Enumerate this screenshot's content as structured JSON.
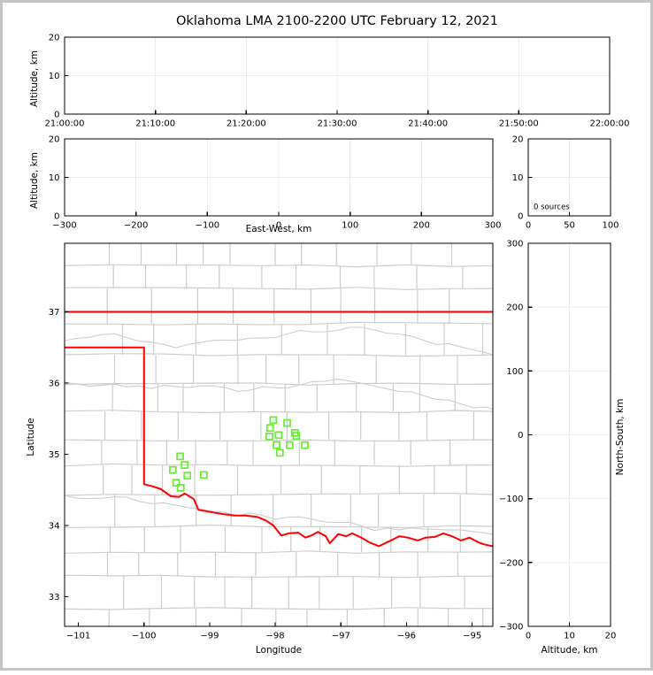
{
  "title": "Oklahoma LMA 2100-2200 UTC February 12, 2021",
  "colors": {
    "figure_border": "#c4c4c4",
    "axis": "#000000",
    "grid": "#ececec",
    "county": "#cccccc",
    "state_border": "#ff0000",
    "stations": "#66ee33"
  },
  "chart_data": [
    {
      "id": "time_altitude_panel",
      "type": "scatter",
      "ylabel": "Altitude, km",
      "xlabel": "",
      "xlim_values": [
        0,
        6
      ],
      "ylim": [
        0,
        20
      ],
      "x_tick_values": [
        0,
        1,
        2,
        3,
        4,
        5,
        6
      ],
      "x_tick_labels": [
        "21:00:00",
        "21:10:00",
        "21:20:00",
        "21:30:00",
        "21:40:00",
        "21:50:00",
        "22:00:00"
      ],
      "y_tick_values": [
        0,
        10,
        20
      ],
      "y_tick_labels": [
        "0",
        "10",
        "20"
      ],
      "grid_x": [
        1,
        2,
        3,
        4,
        5
      ],
      "grid_y": [
        10
      ],
      "points": []
    },
    {
      "id": "eastwest_altitude_panel",
      "type": "scatter",
      "ylabel": "Altitude, km",
      "xlabel": "East-West, km",
      "xlim_values": [
        -300,
        300
      ],
      "ylim": [
        0,
        20
      ],
      "x_tick_values": [
        -300,
        -200,
        -100,
        0,
        100,
        200,
        300
      ],
      "x_tick_labels": [
        "−300",
        "−200",
        "−100",
        "0",
        "100",
        "200",
        "300"
      ],
      "y_tick_values": [
        0,
        10,
        20
      ],
      "y_tick_labels": [
        "0",
        "10",
        "20"
      ],
      "grid_x": [
        -200,
        -100,
        0,
        100,
        200
      ],
      "grid_y": [
        10
      ],
      "points": []
    },
    {
      "id": "altitude_histogram_panel",
      "type": "line",
      "annotation": "0 sources",
      "xlabel": "",
      "ylabel": "",
      "xlim_values": [
        0,
        100
      ],
      "ylim": [
        0,
        20
      ],
      "x_tick_values": [
        0,
        50,
        100
      ],
      "x_tick_labels": [
        "0",
        "50",
        "100"
      ],
      "y_tick_values": [
        0,
        10,
        20
      ],
      "y_tick_labels": [
        "0",
        "10",
        "20"
      ],
      "grid_x": [
        50
      ],
      "grid_y": [
        10
      ],
      "points": []
    },
    {
      "id": "plan_view_map_panel",
      "type": "scatter",
      "xlabel": "Longitude",
      "ylabel": "Latitude",
      "xlim_values": [
        -101.21,
        -94.685
      ],
      "ylim": [
        32.584,
        37.963
      ],
      "x_tick_values": [
        -101,
        -100,
        -99,
        -98,
        -97,
        -96,
        -95
      ],
      "x_tick_labels": [
        "−101",
        "−100",
        "−99",
        "−98",
        "−97",
        "−96",
        "−95"
      ],
      "y_tick_values": [
        33,
        34,
        35,
        36,
        37
      ],
      "y_tick_labels": [
        "33",
        "34",
        "35",
        "36",
        "37"
      ],
      "grid_x": [],
      "grid_y": [],
      "marker_shape": "open-square",
      "stations_lonlat": [
        [
          -99.45,
          34.97
        ],
        [
          -99.38,
          34.85
        ],
        [
          -99.56,
          34.78
        ],
        [
          -99.34,
          34.7
        ],
        [
          -99.09,
          34.71
        ],
        [
          -99.51,
          34.6
        ],
        [
          -99.44,
          34.53
        ],
        [
          -98.03,
          35.48
        ],
        [
          -97.82,
          35.44
        ],
        [
          -98.08,
          35.37
        ],
        [
          -98.09,
          35.25
        ],
        [
          -97.95,
          35.27
        ],
        [
          -97.7,
          35.3
        ],
        [
          -97.68,
          35.26
        ],
        [
          -97.98,
          35.13
        ],
        [
          -97.78,
          35.13
        ],
        [
          -97.55,
          35.13
        ],
        [
          -97.93,
          35.02
        ]
      ],
      "state_boundary_segments": [
        [
          [
            -101.21,
            37.0
          ],
          [
            -94.685,
            37.0
          ]
        ],
        [
          [
            -101.21,
            36.5
          ],
          [
            -100.0,
            36.5
          ]
        ],
        [
          [
            -100.0,
            36.5
          ],
          [
            -100.0,
            34.584
          ]
        ],
        [
          [
            -100.0,
            34.58
          ],
          [
            -99.87,
            34.55
          ],
          [
            -99.74,
            34.51
          ],
          [
            -99.59,
            34.41
          ],
          [
            -99.47,
            34.4
          ],
          [
            -99.38,
            34.45
          ],
          [
            -99.24,
            34.37
          ],
          [
            -99.17,
            34.22
          ],
          [
            -98.99,
            34.19
          ],
          [
            -98.8,
            34.16
          ],
          [
            -98.62,
            34.14
          ],
          [
            -98.45,
            34.14
          ],
          [
            -98.27,
            34.12
          ],
          [
            -98.14,
            34.07
          ],
          [
            -98.03,
            34.0
          ],
          [
            -97.91,
            33.86
          ],
          [
            -97.79,
            33.89
          ],
          [
            -97.65,
            33.9
          ],
          [
            -97.54,
            33.83
          ],
          [
            -97.45,
            33.86
          ],
          [
            -97.35,
            33.91
          ],
          [
            -97.23,
            33.85
          ],
          [
            -97.17,
            33.75
          ],
          [
            -97.04,
            33.88
          ],
          [
            -96.92,
            33.85
          ],
          [
            -96.83,
            33.89
          ],
          [
            -96.69,
            33.83
          ],
          [
            -96.56,
            33.76
          ],
          [
            -96.42,
            33.71
          ],
          [
            -96.26,
            33.78
          ],
          [
            -96.11,
            33.85
          ],
          [
            -95.98,
            33.83
          ],
          [
            -95.83,
            33.79
          ],
          [
            -95.71,
            33.83
          ],
          [
            -95.57,
            33.84
          ],
          [
            -95.44,
            33.89
          ],
          [
            -95.31,
            33.85
          ],
          [
            -95.17,
            33.79
          ],
          [
            -95.04,
            33.83
          ],
          [
            -94.9,
            33.76
          ],
          [
            -94.8,
            33.73
          ],
          [
            -94.69,
            33.71
          ]
        ]
      ]
    },
    {
      "id": "northsouth_altitude_panel",
      "type": "scatter",
      "xlabel": "Altitude, km",
      "ylabel_right": "North-South, km",
      "xlim_values": [
        0,
        20
      ],
      "ylim": [
        -300,
        300
      ],
      "x_tick_values": [
        0,
        10,
        20
      ],
      "x_tick_labels": [
        "0",
        "10",
        "20"
      ],
      "y_tick_values": [
        300,
        200,
        100,
        0,
        -100,
        -200,
        -300
      ],
      "y_tick_labels": [
        "300",
        "200",
        "100",
        "0",
        "−100",
        "−200",
        "−300"
      ],
      "grid_x": [
        10
      ],
      "grid_y": [
        -200,
        -100,
        0,
        100,
        200
      ],
      "points": []
    }
  ]
}
